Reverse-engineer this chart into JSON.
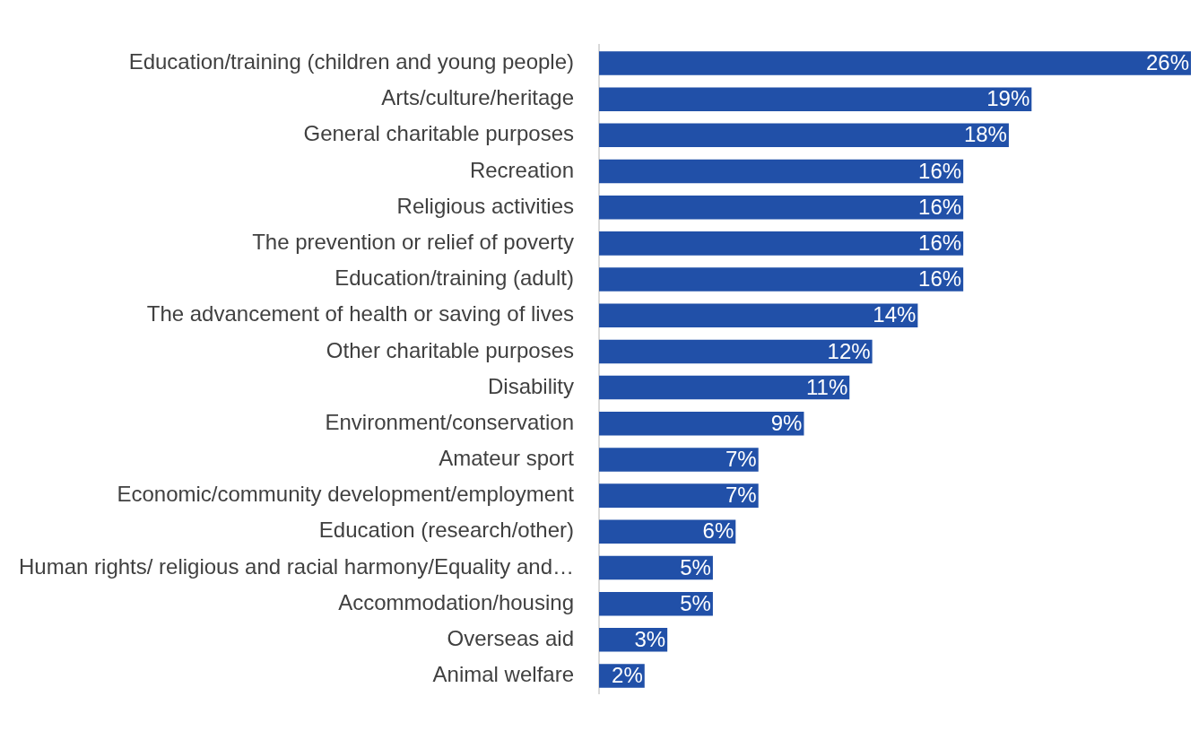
{
  "chart_data": {
    "type": "bar",
    "orientation": "horizontal",
    "color": "#2150a8",
    "legend": false,
    "categories": [
      "Education/training (children and young people)",
      "Arts/culture/heritage",
      "General charitable purposes",
      "Recreation",
      "Religious activities",
      "The prevention or relief of poverty",
      "Education/training (adult)",
      "The advancement of health or saving of lives",
      "Other charitable purposes",
      "Disability",
      "Environment/conservation",
      "Amateur sport",
      "Economic/community development/employment",
      "Education (research/other)",
      "Human rights/ religious and racial harmony/Equality and…",
      "Accommodation/housing",
      "Overseas aid",
      "Animal welfare"
    ],
    "values": [
      26,
      19,
      18,
      16,
      16,
      16,
      16,
      14,
      12,
      11,
      9,
      7,
      7,
      6,
      5,
      5,
      3,
      2
    ],
    "value_labels": [
      "26%",
      "19%",
      "18%",
      "16%",
      "16%",
      "16%",
      "16%",
      "14%",
      "12%",
      "11%",
      "9%",
      "7%",
      "7%",
      "6%",
      "5%",
      "5%",
      "3%",
      "2%"
    ]
  }
}
